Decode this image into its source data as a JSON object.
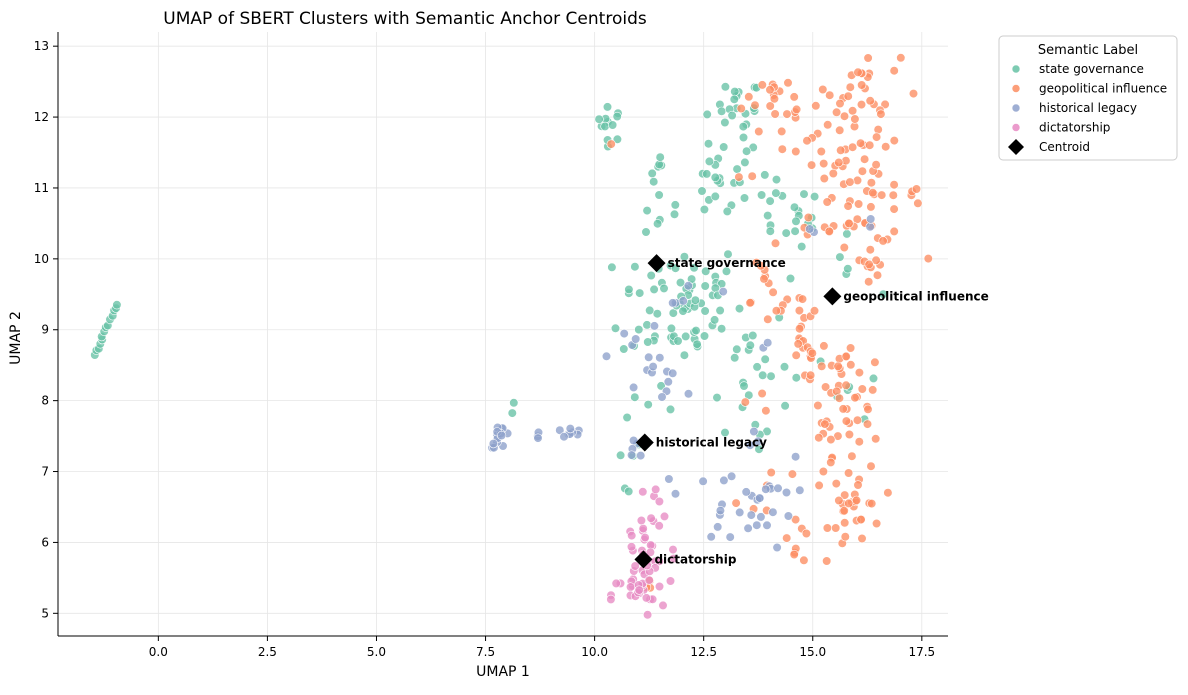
{
  "chart_data": {
    "type": "scatter",
    "title": "UMAP of SBERT Clusters with Semantic Anchor Centroids",
    "xlabel": "UMAP 1",
    "ylabel": "UMAP 2",
    "xlim": [
      -2.3,
      18.1
    ],
    "ylim": [
      4.68,
      13.2
    ],
    "xticks": [
      0.0,
      2.5,
      5.0,
      7.5,
      10.0,
      12.5,
      15.0,
      17.5
    ],
    "xtick_labels": [
      "0.0",
      "2.5",
      "5.0",
      "7.5",
      "10.0",
      "12.5",
      "15.0",
      "17.5"
    ],
    "yticks": [
      5,
      6,
      7,
      8,
      9,
      10,
      11,
      12,
      13
    ],
    "ytick_labels": [
      "5",
      "6",
      "7",
      "8",
      "9",
      "10",
      "11",
      "12",
      "13"
    ],
    "grid": true,
    "legend": {
      "title": "Semantic Label",
      "placement": "outside-upper-right",
      "entries": [
        "state governance",
        "geopolitical influence",
        "historical legacy",
        "dictatorship",
        "Centroid"
      ]
    },
    "series": [
      {
        "name": "state governance",
        "color": "#66c2a5",
        "clusters": [
          {
            "cx": -1.2,
            "cy": 9.0,
            "sx": 0.1,
            "sy": 0.12,
            "n": 14,
            "line": true
          },
          {
            "cx": 10.35,
            "cy": 11.9,
            "sx": 0.15,
            "sy": 0.12,
            "n": 12
          },
          {
            "cx": 11.45,
            "cy": 11.25,
            "sx": 0.08,
            "sy": 0.12,
            "n": 6
          },
          {
            "cx": 11.7,
            "cy": 10.7,
            "sx": 0.25,
            "sy": 0.25,
            "n": 6
          },
          {
            "cx": 13.3,
            "cy": 12.2,
            "sx": 0.25,
            "sy": 0.15,
            "n": 14
          },
          {
            "cx": 13.2,
            "cy": 11.6,
            "sx": 0.3,
            "sy": 0.35,
            "n": 12
          },
          {
            "cx": 12.8,
            "cy": 11.0,
            "sx": 0.3,
            "sy": 0.25,
            "n": 18
          },
          {
            "cx": 14.2,
            "cy": 10.7,
            "sx": 0.4,
            "sy": 0.25,
            "n": 14
          },
          {
            "cx": 12.0,
            "cy": 9.4,
            "sx": 0.7,
            "sy": 0.45,
            "n": 70
          },
          {
            "cx": 13.5,
            "cy": 8.5,
            "sx": 0.5,
            "sy": 0.45,
            "n": 22
          },
          {
            "cx": 14.8,
            "cy": 10.3,
            "sx": 0.3,
            "sy": 0.25,
            "n": 8
          },
          {
            "cx": 15.8,
            "cy": 9.9,
            "sx": 0.3,
            "sy": 0.2,
            "n": 5
          },
          {
            "cx": 15.9,
            "cy": 8.2,
            "sx": 0.4,
            "sy": 0.3,
            "n": 6
          },
          {
            "cx": 11.2,
            "cy": 8.0,
            "sx": 0.3,
            "sy": 0.3,
            "n": 5
          },
          {
            "cx": 8.15,
            "cy": 7.9,
            "sx": 0.1,
            "sy": 0.08,
            "n": 2
          },
          {
            "cx": 13.7,
            "cy": 7.5,
            "sx": 0.2,
            "sy": 0.2,
            "n": 3
          },
          {
            "cx": 10.8,
            "cy": 7.3,
            "sx": 0.1,
            "sy": 0.1,
            "n": 3
          },
          {
            "cx": 10.7,
            "cy": 6.8,
            "sx": 0.05,
            "sy": 0.05,
            "n": 2
          }
        ]
      },
      {
        "name": "geopolitical influence",
        "color": "#fc8d62",
        "clusters": [
          {
            "cx": 16.2,
            "cy": 12.4,
            "sx": 0.4,
            "sy": 0.25,
            "n": 22
          },
          {
            "cx": 15.5,
            "cy": 11.7,
            "sx": 0.6,
            "sy": 0.4,
            "n": 30
          },
          {
            "cx": 16.3,
            "cy": 10.9,
            "sx": 0.6,
            "sy": 0.35,
            "n": 45
          },
          {
            "cx": 14.3,
            "cy": 11.8,
            "sx": 0.5,
            "sy": 0.35,
            "n": 12
          },
          {
            "cx": 13.8,
            "cy": 12.3,
            "sx": 0.3,
            "sy": 0.15,
            "n": 8
          },
          {
            "cx": 15.6,
            "cy": 10.5,
            "sx": 0.5,
            "sy": 0.1,
            "n": 10
          },
          {
            "cx": 16.3,
            "cy": 9.9,
            "sx": 0.2,
            "sy": 0.2,
            "n": 8
          },
          {
            "cx": 14.3,
            "cy": 9.4,
            "sx": 0.35,
            "sy": 0.25,
            "n": 12
          },
          {
            "cx": 14.8,
            "cy": 8.8,
            "sx": 0.15,
            "sy": 0.3,
            "n": 18
          },
          {
            "cx": 13.9,
            "cy": 9.8,
            "sx": 0.2,
            "sy": 0.1,
            "n": 5
          },
          {
            "cx": 15.4,
            "cy": 8.3,
            "sx": 0.3,
            "sy": 0.25,
            "n": 15
          },
          {
            "cx": 16.0,
            "cy": 8.0,
            "sx": 0.3,
            "sy": 0.35,
            "n": 18
          },
          {
            "cx": 15.5,
            "cy": 7.3,
            "sx": 0.35,
            "sy": 0.3,
            "n": 18
          },
          {
            "cx": 16.0,
            "cy": 6.5,
            "sx": 0.3,
            "sy": 0.3,
            "n": 30
          },
          {
            "cx": 14.6,
            "cy": 6.2,
            "sx": 0.2,
            "sy": 0.25,
            "n": 8
          },
          {
            "cx": 13.9,
            "cy": 8.0,
            "sx": 0.2,
            "sy": 0.1,
            "n": 3
          },
          {
            "cx": 14.0,
            "cy": 6.7,
            "sx": 0.4,
            "sy": 0.2,
            "n": 6
          },
          {
            "cx": 10.35,
            "cy": 11.5,
            "sx": 0.05,
            "sy": 0.05,
            "n": 1
          },
          {
            "cx": 11.3,
            "cy": 5.4,
            "sx": 0.1,
            "sy": 0.08,
            "n": 3
          }
        ]
      },
      {
        "name": "historical legacy",
        "color": "#8da0cb",
        "clusters": [
          {
            "cx": 7.85,
            "cy": 7.5,
            "sx": 0.12,
            "sy": 0.08,
            "n": 14
          },
          {
            "cx": 9.35,
            "cy": 7.55,
            "sx": 0.2,
            "sy": 0.05,
            "n": 8
          },
          {
            "cx": 8.7,
            "cy": 7.52,
            "sx": 0.05,
            "sy": 0.02,
            "n": 3
          },
          {
            "cx": 11.2,
            "cy": 8.6,
            "sx": 0.4,
            "sy": 0.3,
            "n": 14
          },
          {
            "cx": 11.6,
            "cy": 8.3,
            "sx": 0.3,
            "sy": 0.08,
            "n": 4
          },
          {
            "cx": 12.0,
            "cy": 9.3,
            "sx": 0.3,
            "sy": 0.3,
            "n": 5
          },
          {
            "cx": 13.2,
            "cy": 6.5,
            "sx": 0.45,
            "sy": 0.25,
            "n": 18
          },
          {
            "cx": 14.0,
            "cy": 6.6,
            "sx": 0.3,
            "sy": 0.3,
            "n": 12
          },
          {
            "cx": 10.9,
            "cy": 7.3,
            "sx": 0.3,
            "sy": 0.1,
            "n": 4
          },
          {
            "cx": 11.8,
            "cy": 6.8,
            "sx": 0.1,
            "sy": 0.1,
            "n": 2
          },
          {
            "cx": 13.9,
            "cy": 8.8,
            "sx": 0.1,
            "sy": 0.05,
            "n": 2
          },
          {
            "cx": 14.9,
            "cy": 10.4,
            "sx": 0.1,
            "sy": 0.1,
            "n": 2
          },
          {
            "cx": 16.3,
            "cy": 10.4,
            "sx": 0.15,
            "sy": 0.1,
            "n": 2
          },
          {
            "cx": 13.6,
            "cy": 7.4,
            "sx": 0.1,
            "sy": 0.1,
            "n": 3
          }
        ]
      },
      {
        "name": "dictatorship",
        "color": "#e78ac3",
        "clusters": [
          {
            "cx": 11.0,
            "cy": 5.25,
            "sx": 0.3,
            "sy": 0.15,
            "n": 22
          },
          {
            "cx": 11.2,
            "cy": 5.9,
            "sx": 0.35,
            "sy": 0.3,
            "n": 22
          },
          {
            "cx": 11.5,
            "cy": 6.5,
            "sx": 0.25,
            "sy": 0.2,
            "n": 8
          },
          {
            "cx": 11.1,
            "cy": 5.55,
            "sx": 0.3,
            "sy": 0.15,
            "n": 8
          }
        ]
      }
    ],
    "centroids": [
      {
        "label": "state governance",
        "x": 11.42,
        "y": 9.94
      },
      {
        "label": "geopolitical influence",
        "x": 15.45,
        "y": 9.47
      },
      {
        "label": "historical legacy",
        "x": 11.15,
        "y": 7.41
      },
      {
        "label": "dictatorship",
        "x": 11.12,
        "y": 5.76
      }
    ]
  }
}
